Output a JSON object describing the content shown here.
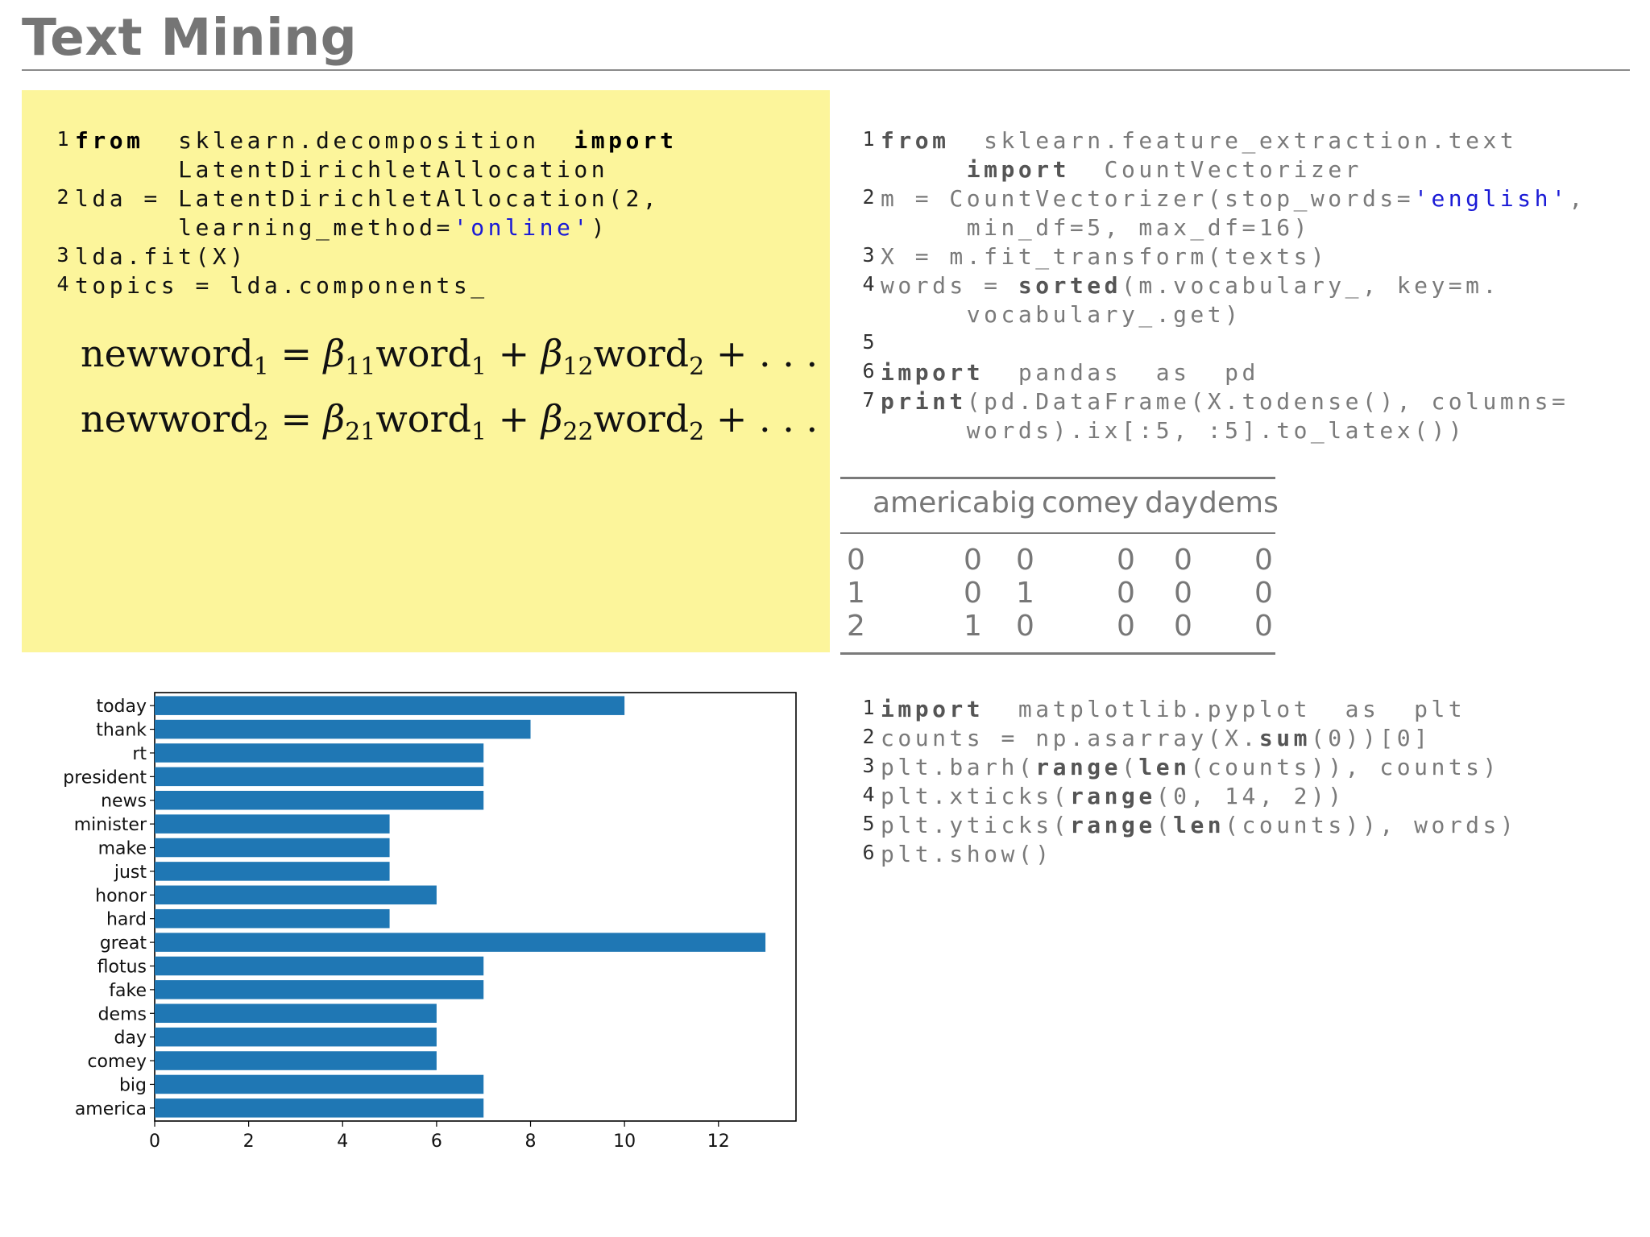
{
  "slide": {
    "title": "Text Mining"
  },
  "code_lda": {
    "lines": [
      {
        "num": "1",
        "parts": [
          {
            "t": "from",
            "kw": true
          },
          {
            "t": "  sklearn.decomposition  "
          },
          {
            "t": "import",
            "kw": true
          }
        ]
      },
      {
        "num": "",
        "parts": [
          {
            "t": "      LatentDirichletAllocation"
          }
        ]
      },
      {
        "num": "2",
        "parts": [
          {
            "t": "lda = LatentDirichletAllocation(2,"
          }
        ]
      },
      {
        "num": "",
        "parts": [
          {
            "t": "      learning_method="
          },
          {
            "t": "'online'",
            "str": true
          },
          {
            "t": ")"
          }
        ]
      },
      {
        "num": "3",
        "parts": [
          {
            "t": "lda.fit(X)"
          }
        ]
      },
      {
        "num": "4",
        "parts": [
          {
            "t": "topics = lda.components_"
          }
        ]
      }
    ]
  },
  "equations": [
    {
      "lhs": "newword",
      "lhs_sub": "1",
      "b1": "β",
      "b1_sub": "11",
      "w1": "word",
      "w1_sub": "1",
      "b2": "β",
      "b2_sub": "12",
      "w2": "word",
      "w2_sub": "2",
      "tail": "+ . . ."
    },
    {
      "lhs": "newword",
      "lhs_sub": "2",
      "b1": "β",
      "b1_sub": "21",
      "w1": "word",
      "w1_sub": "1",
      "b2": "β",
      "b2_sub": "22",
      "w2": "word",
      "w2_sub": "2",
      "tail": "+ . . ."
    }
  ],
  "code_vectorizer": {
    "lines": [
      {
        "num": "1",
        "parts": [
          {
            "t": "from",
            "kw": true
          },
          {
            "t": "  sklearn.feature_extraction.text"
          }
        ]
      },
      {
        "num": "",
        "parts": [
          {
            "t": "     "
          },
          {
            "t": "import",
            "kw": true
          },
          {
            "t": "  CountVectorizer"
          }
        ]
      },
      {
        "num": "2",
        "parts": [
          {
            "t": "m = CountVectorizer(stop_words="
          },
          {
            "t": "'english'",
            "str": true
          },
          {
            "t": ","
          }
        ]
      },
      {
        "num": "",
        "parts": [
          {
            "t": "     min_df=5, max_df=16)"
          }
        ]
      },
      {
        "num": "3",
        "parts": [
          {
            "t": "X = m.fit_transform(texts)"
          }
        ]
      },
      {
        "num": "4",
        "parts": [
          {
            "t": "words = "
          },
          {
            "t": "sorted",
            "kw": true
          },
          {
            "t": "(m.vocabulary_, key=m."
          }
        ]
      },
      {
        "num": "",
        "parts": [
          {
            "t": "     vocabulary_.get)"
          }
        ]
      },
      {
        "num": "5",
        "parts": [
          {
            "t": ""
          }
        ]
      },
      {
        "num": "6",
        "parts": [
          {
            "t": "import",
            "kw": true
          },
          {
            "t": "  pandas  as  pd"
          }
        ]
      },
      {
        "num": "7",
        "parts": [
          {
            "t": "print",
            "kw": true
          },
          {
            "t": "(pd.DataFrame(X.todense(), columns="
          }
        ]
      },
      {
        "num": "",
        "parts": [
          {
            "t": "     words).ix[:5, :5].to_latex())"
          }
        ]
      }
    ]
  },
  "table": {
    "headers": [
      "america",
      "big",
      "comey",
      "day",
      "dems"
    ],
    "rows": [
      [
        "0",
        "0",
        "0",
        "0",
        "0",
        "0"
      ],
      [
        "1",
        "0",
        "1",
        "0",
        "0",
        "0"
      ],
      [
        "2",
        "1",
        "0",
        "0",
        "0",
        "0"
      ]
    ]
  },
  "code_plot": {
    "lines": [
      {
        "num": "1",
        "parts": [
          {
            "t": "import",
            "kw": true
          },
          {
            "t": "  matplotlib.pyplot  as  plt"
          }
        ]
      },
      {
        "num": "2",
        "parts": [
          {
            "t": "counts = np.asarray(X."
          },
          {
            "t": "sum",
            "kw": true
          },
          {
            "t": "(0))[0]"
          }
        ]
      },
      {
        "num": "3",
        "parts": [
          {
            "t": "plt.barh("
          },
          {
            "t": "range",
            "kw": true
          },
          {
            "t": "("
          },
          {
            "t": "len",
            "kw": true
          },
          {
            "t": "(counts)), counts)"
          }
        ]
      },
      {
        "num": "4",
        "parts": [
          {
            "t": "plt.xticks("
          },
          {
            "t": "range",
            "kw": true
          },
          {
            "t": "(0, 14, 2))"
          }
        ]
      },
      {
        "num": "5",
        "parts": [
          {
            "t": "plt.yticks("
          },
          {
            "t": "range",
            "kw": true
          },
          {
            "t": "("
          },
          {
            "t": "len",
            "kw": true
          },
          {
            "t": "(counts)), words)"
          }
        ]
      },
      {
        "num": "6",
        "parts": [
          {
            "t": "plt.show()"
          }
        ]
      }
    ]
  },
  "chart_data": {
    "type": "bar",
    "orientation": "horizontal",
    "categories": [
      "america",
      "big",
      "comey",
      "day",
      "dems",
      "fake",
      "flotus",
      "great",
      "hard",
      "honor",
      "just",
      "make",
      "minister",
      "news",
      "president",
      "rt",
      "thank",
      "today"
    ],
    "values": [
      7,
      7,
      6,
      6,
      6,
      7,
      7,
      13,
      5,
      6,
      5,
      5,
      5,
      7,
      7,
      7,
      8,
      10
    ],
    "xticks": [
      0,
      2,
      4,
      6,
      8,
      10,
      12
    ],
    "xlim": [
      0,
      13.65
    ],
    "bar_color": "#1f77b4",
    "grid": false
  },
  "colors": {
    "highlight_bg": "#fcf59b",
    "string": "#1a1ad6",
    "title": "#757575"
  }
}
